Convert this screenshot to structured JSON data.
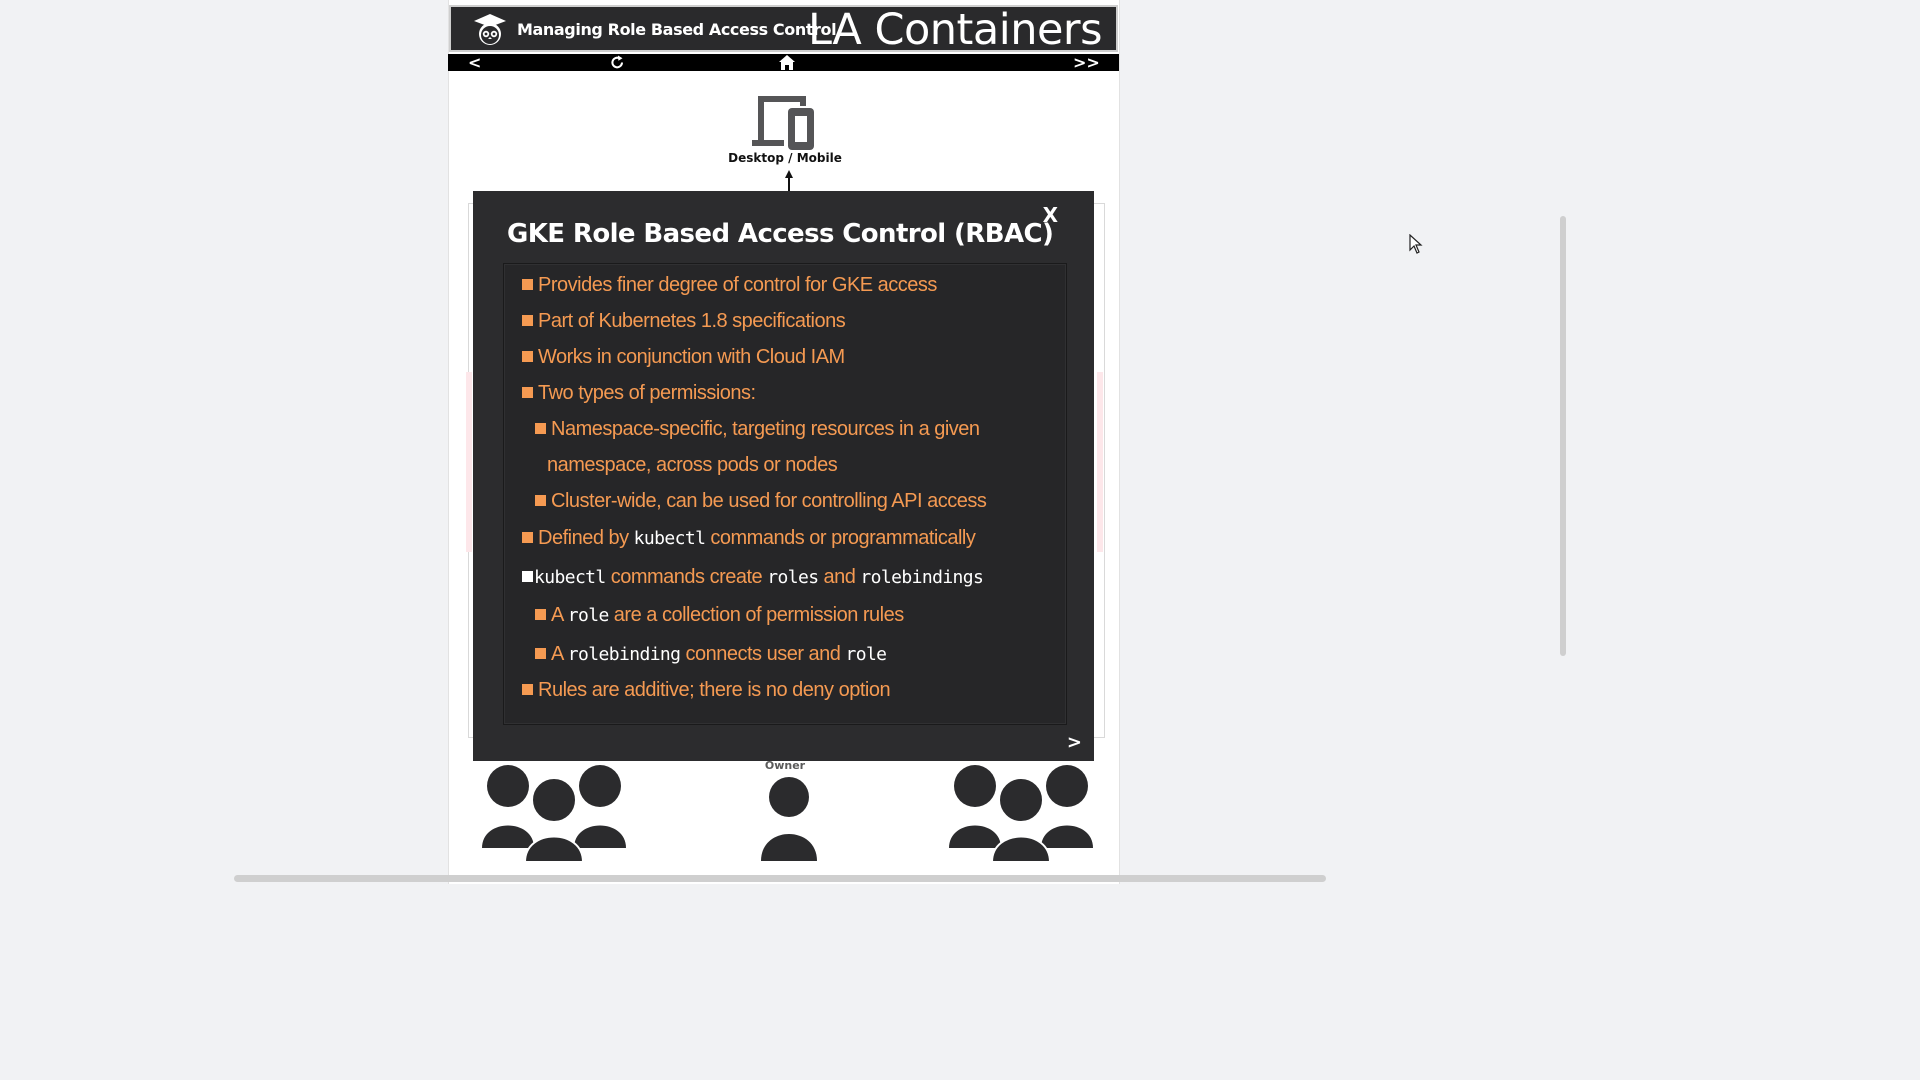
{
  "header": {
    "logo_icon": "owl-graduate-logo",
    "title": "Managing Role Based Access Control",
    "brand": "LA Containers"
  },
  "nav": {
    "prev_label": "<",
    "next_label": ">>",
    "refresh_icon": "refresh-icon",
    "home_icon": "home-icon"
  },
  "diagram": {
    "device_label": "Desktop / Mobile",
    "owner_label": "Owner"
  },
  "modal": {
    "close_label": "X",
    "title": "GKE Role Based Access Control (RBAC)",
    "next_label": ">",
    "lines": [
      {
        "text": "Provides finer degree of control for GKE access"
      },
      {
        "text": "Part of Kubernetes 1.8 specifications"
      },
      {
        "text": "Works in conjunction with Cloud IAM"
      },
      {
        "text": "Two types of permissions:"
      },
      {
        "text": "Namespace-specific, targeting resources in a given"
      },
      {
        "text": "namespace, across pods or nodes"
      },
      {
        "text": "Cluster-wide, can be used for controlling API access"
      },
      {
        "pre": "Defined by ",
        "code": "kubectl",
        "post": " commands or programmatically"
      },
      {
        "code": "kubectl",
        "mid": " commands create ",
        "code2": "roles",
        "mid2": " and ",
        "code3": "rolebindings"
      },
      {
        "pre": "A ",
        "code": "role",
        "post": " are a collection of permission rules"
      },
      {
        "pre": "A ",
        "code": "rolebinding",
        "mid": " connects user and ",
        "code2": "role"
      },
      {
        "text": "Rules are additive; there is no deny option"
      }
    ]
  },
  "colors": {
    "modal_bg": "#2c2c2e",
    "accent_orange": "#f59a52",
    "header_bg": "#2a2a2c"
  }
}
